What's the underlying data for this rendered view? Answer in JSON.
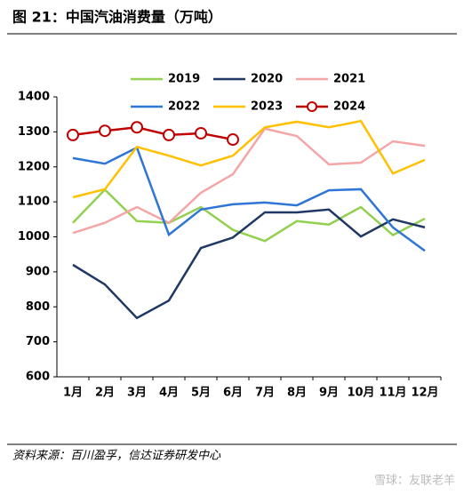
{
  "title": "图 21：中国汽油消费量（万吨）",
  "source": "资料来源：百川盈孚，信达证券研发中心",
  "watermark": "雪球：友联老羊",
  "chart_data": {
    "type": "line",
    "categories": [
      "1月",
      "2月",
      "3月",
      "4月",
      "5月",
      "6月",
      "7月",
      "8月",
      "9月",
      "10月",
      "11月",
      "12月"
    ],
    "ylim": [
      600,
      1400
    ],
    "yticks": [
      600,
      700,
      800,
      900,
      1000,
      1100,
      1200,
      1300,
      1400
    ],
    "legend": "top",
    "grid": false,
    "series": [
      {
        "name": "2019",
        "color": "#92d050",
        "values": [
          1040,
          1135,
          1045,
          1040,
          1085,
          1020,
          988,
          1045,
          1035,
          1085,
          1005,
          1052
        ]
      },
      {
        "name": "2020",
        "color": "#1f3864",
        "values": [
          920,
          864,
          768,
          818,
          968,
          998,
          1070,
          1070,
          1078,
          1001,
          1050,
          1027
        ]
      },
      {
        "name": "2021",
        "color": "#f4a6a6",
        "values": [
          1011,
          1040,
          1085,
          1040,
          1126,
          1179,
          1309,
          1288,
          1207,
          1212,
          1273,
          1260
        ]
      },
      {
        "name": "2022",
        "color": "#2e75d6",
        "values": [
          1225,
          1209,
          1255,
          1006,
          1078,
          1093,
          1098,
          1090,
          1133,
          1136,
          1027,
          960
        ]
      },
      {
        "name": "2023",
        "color": "#ffc000",
        "values": [
          1113,
          1136,
          1257,
          1232,
          1204,
          1232,
          1313,
          1329,
          1313,
          1331,
          1181,
          1220
        ]
      },
      {
        "name": "2024",
        "color": "#c00000",
        "markers": true,
        "values": [
          1291,
          1303,
          1313,
          1291,
          1296,
          1278,
          null,
          null,
          null,
          null,
          null,
          null
        ]
      }
    ]
  }
}
